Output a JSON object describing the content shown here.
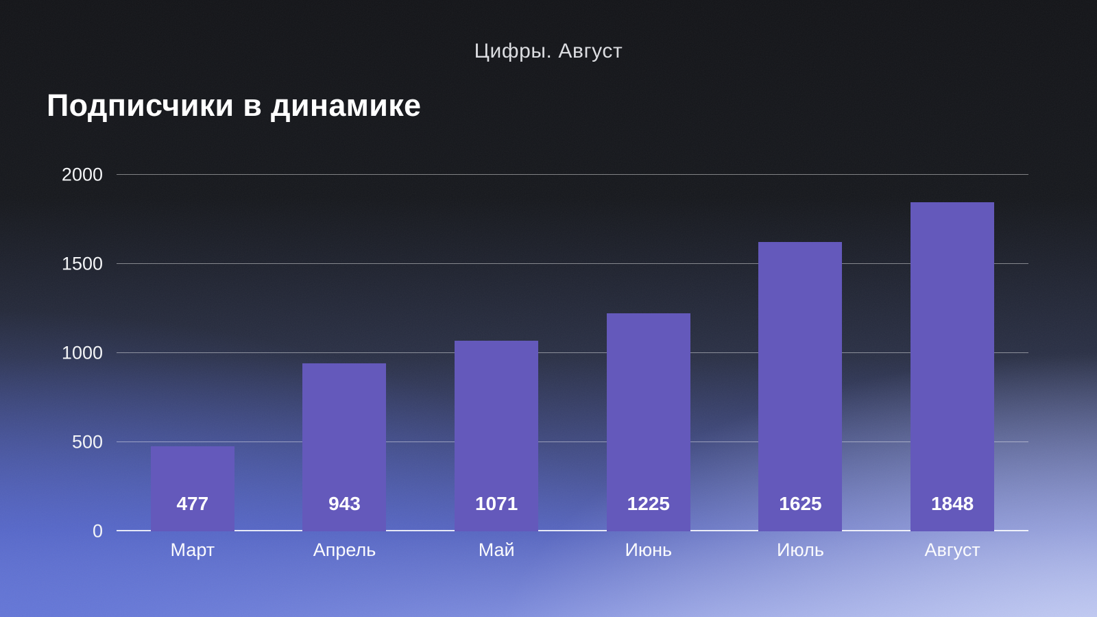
{
  "header": {
    "kicker": "Цифры. Август",
    "heading": "Подписчики в динамике"
  },
  "chart_data": {
    "type": "bar",
    "title": "Подписчики в динамике",
    "subtitle": "Цифры. Август",
    "categories": [
      "Март",
      "Апрель",
      "Май",
      "Июнь",
      "Июль",
      "Август"
    ],
    "values": [
      477,
      943,
      1071,
      1225,
      1625,
      1848
    ],
    "yticks": [
      0,
      500,
      1000,
      1500,
      2000
    ],
    "ylim": [
      0,
      2000
    ],
    "xlabel": "",
    "ylabel": "",
    "grid": true,
    "legend": false,
    "bar_color": "#6459bb",
    "value_label_color": "#ffffff",
    "gridline_color": "rgba(255,255,255,0.45)"
  },
  "colors": {
    "background_top": "#121317",
    "background_bottom_left": "#566ad4",
    "background_bottom_right": "#ced6f7",
    "accent_bar": "#6459bb",
    "text_primary": "#ffffff",
    "text_secondary": "#dcdde1"
  }
}
